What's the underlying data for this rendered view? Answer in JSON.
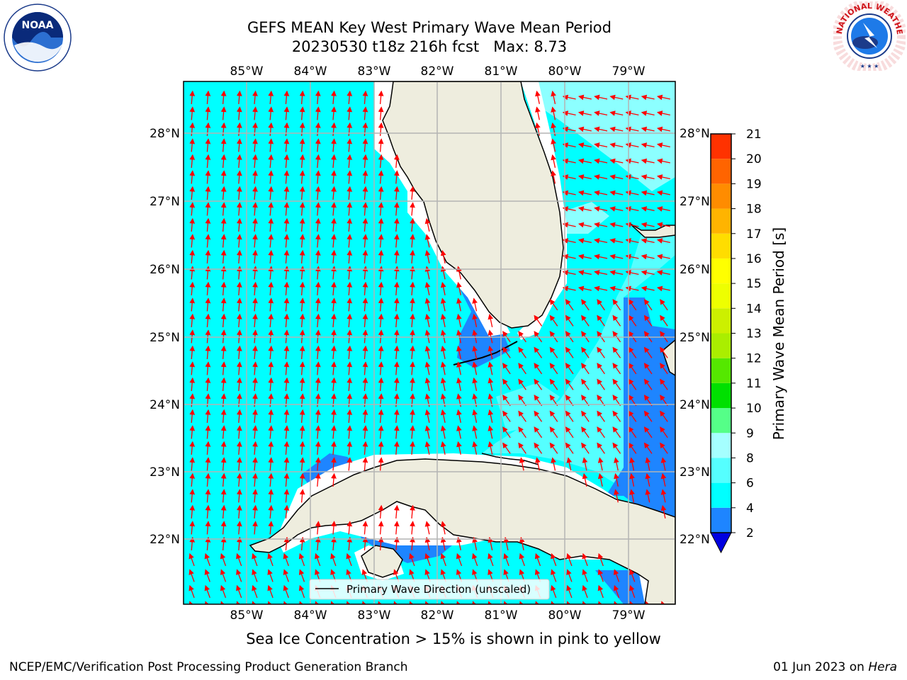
{
  "title": {
    "line1": "GEFS MEAN Key West Primary Wave Mean Period",
    "line2": "20230530 t18z 216h fcst   Max: 8.73"
  },
  "map": {
    "lon_labels": [
      "85°W",
      "84°W",
      "83°W",
      "82°W",
      "81°W",
      "80°W",
      "79°W"
    ],
    "lat_labels": [
      "28°N",
      "27°N",
      "26°N",
      "25°N",
      "24°N",
      "23°N",
      "22°N"
    ],
    "legend_label": "Primary Wave Direction (unscaled)",
    "colors": {
      "ocean_low": "#00ffff",
      "ocean_mid": "#55ffff",
      "ocean_high": "#a5ffff",
      "ocean_deep": "#1e85ff",
      "land": "#eeedde",
      "arrows": "#ff0000",
      "grid": "#b4b4b4"
    }
  },
  "colorbar": {
    "label": "Primary Wave Mean Period [s]",
    "ticks": [
      "2",
      "4",
      "6",
      "8",
      "9",
      "10",
      "11",
      "12",
      "13",
      "14",
      "15",
      "16",
      "17",
      "18",
      "19",
      "20",
      "21"
    ],
    "colors": [
      "#1e85ff",
      "#00ffff",
      "#55ffff",
      "#a5ffff",
      "#55ff88",
      "#00e000",
      "#55e800",
      "#aaee00",
      "#ccf000",
      "#eeff00",
      "#ffff00",
      "#ffdd00",
      "#ffb400",
      "#ff8c00",
      "#ff6400",
      "#ff3200",
      "#ff0000"
    ],
    "extend_color": "#0000e0"
  },
  "caption": "Sea Ice Concentration > 15% is shown in pink to yellow",
  "footer": {
    "left": "NCEP/EMC/Verification Post Processing Product Generation Branch",
    "right_date": "01 Jun 2023 on ",
    "right_host": "Hera"
  },
  "logos": {
    "noaa": "NOAA",
    "nws": "NATIONAL WEATHER SERVICE"
  }
}
